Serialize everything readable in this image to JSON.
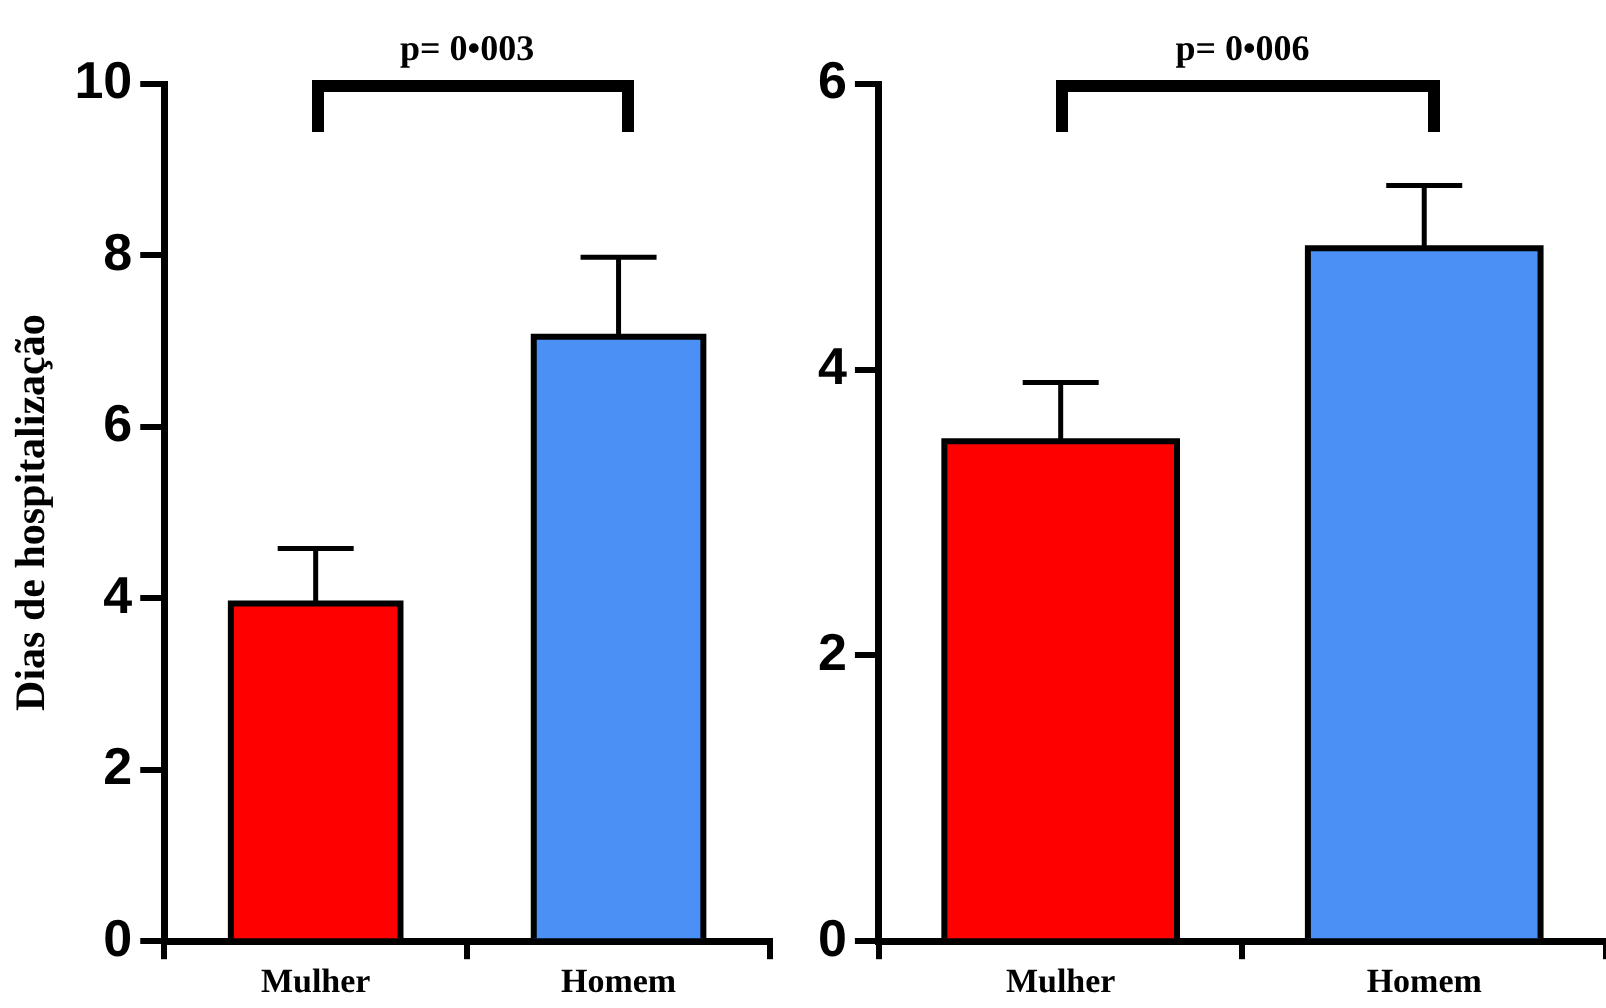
{
  "chart_data": [
    {
      "type": "bar",
      "ylabel": "Dias de hospitalização",
      "categories": [
        "Mulher",
        "Homem"
      ],
      "colors": [
        "#ff0000",
        "#4a90f5"
      ],
      "values": [
        3.94,
        7.05
      ],
      "errors": [
        0.64,
        0.93
      ],
      "ylim": [
        0,
        10
      ],
      "yticks": [
        0,
        2,
        4,
        6,
        8,
        10
      ],
      "annotations": [
        "p= 0•003"
      ]
    },
    {
      "type": "bar",
      "categories": [
        "Mulher",
        "Homem"
      ],
      "colors": [
        "#ff0000",
        "#4a90f5"
      ],
      "values": [
        3.5,
        4.85
      ],
      "errors": [
        0.41,
        0.44
      ],
      "ylim": [
        0,
        6
      ],
      "yticks": [
        0,
        2,
        4,
        6
      ],
      "annotations": [
        "p= 0•006"
      ]
    }
  ]
}
